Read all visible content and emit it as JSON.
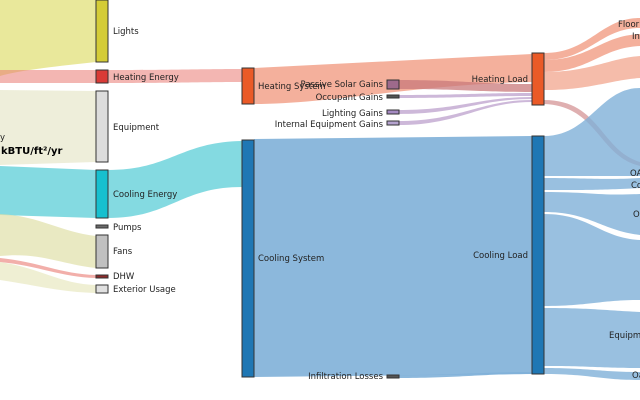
{
  "diagram": {
    "type": "sankey",
    "partial_labels": {
      "left_1": "y",
      "left_2": "kBTU/ft²/yr",
      "right_top_1": "Floor",
      "right_top_2": "In",
      "right_1": "OA",
      "right_2": "Co",
      "right_3": "O",
      "right_4": "Equipme",
      "right_5": "Oa"
    },
    "nodes": {
      "lights": {
        "label": "Lights",
        "color": "#d4cc37"
      },
      "heating": {
        "label": "Heating Energy",
        "color": "#d93a36"
      },
      "equipment": {
        "label": "Equipment",
        "color": "#dcdcdc"
      },
      "cooling": {
        "label": "Cooling Energy",
        "color": "#16c0cf"
      },
      "pumps": {
        "label": "Pumps",
        "color": "#6b6b6b"
      },
      "fans": {
        "label": "Fans",
        "color": "#c0c0c0"
      },
      "dhw": {
        "label": "DHW",
        "color": "#8e2b2b"
      },
      "exterior": {
        "label": "Exterior Usage",
        "color": "#e0e0e0"
      },
      "heat_sys": {
        "label": "Heating System",
        "color": "#ea5a27"
      },
      "cool_sys": {
        "label": "Cooling System",
        "color": "#1f77b4"
      },
      "solar": {
        "label": "Passive Solar Gains",
        "color": "#9e6a8c"
      },
      "occupant": {
        "label": "Occupant Gains",
        "color": "#555555"
      },
      "lighting_g": {
        "label": "Lighting Gains",
        "color": "#a58ac2"
      },
      "internal_eq": {
        "label": "Internal Equipment Gains",
        "color": "#b5a3cf"
      },
      "infil": {
        "label": "Infiltration Losses",
        "color": "#555555"
      },
      "heat_load": {
        "label": "Heating Load",
        "color": "#ea5a27"
      },
      "cool_load": {
        "label": "Cooling Load",
        "color": "#1f77b4"
      }
    },
    "link_colors": {
      "lights": "#e2e07a",
      "heating": "#e97a72",
      "equipment": "#ececd6",
      "cooling": "#6fd3dc",
      "fans": "#e0e0a8",
      "heat_sys": "#ef8f72",
      "cool_sys": "#7fb0d8",
      "solar": "#c9797b",
      "purple": "#c0a6d0"
    }
  }
}
